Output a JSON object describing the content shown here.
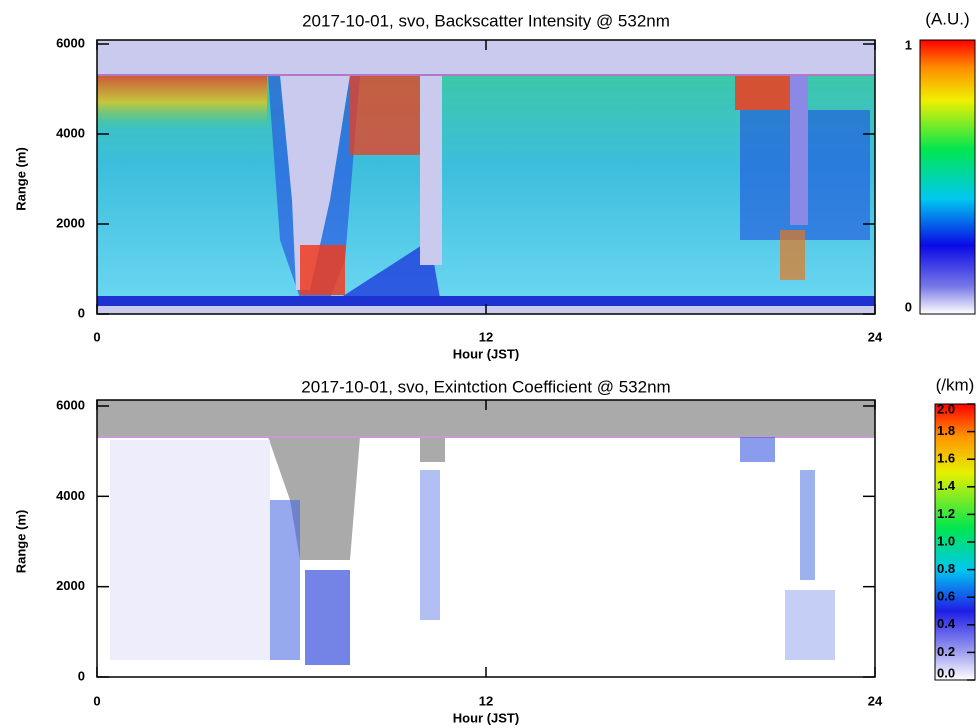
{
  "chart_data": [
    {
      "type": "heatmap",
      "title": "2017-10-01, svo, Backscatter Intensity @ 532nm",
      "x_label": "Hour (JST)",
      "y_label": "Range (m)",
      "xlim": [
        0,
        24
      ],
      "xticks": [
        0,
        12,
        24
      ],
      "ylim": [
        0,
        6000
      ],
      "yticks": [
        0,
        2000,
        4000,
        6000
      ],
      "colorbar": {
        "label": "(A.U.)",
        "lim": [
          0,
          1
        ],
        "ticks": [
          0,
          1
        ]
      }
    },
    {
      "type": "heatmap",
      "title": "2017-10-01, svo, Exintction Coefficient @ 532nm",
      "x_label": "Hour (JST)",
      "y_label": "Range (m)",
      "xlim": [
        0,
        24
      ],
      "xticks": [
        0,
        12,
        24
      ],
      "ylim": [
        0,
        6000
      ],
      "yticks": [
        0,
        2000,
        4000,
        6000
      ],
      "colorbar": {
        "label": "(/km)",
        "lim": [
          0,
          2
        ],
        "ticks": [
          {
            "value": 0,
            "label": "0.0"
          },
          0.2,
          0.4,
          0.6,
          0.8,
          {
            "value": 1,
            "label": "1.0"
          },
          1.2,
          1.4,
          1.6,
          1.8,
          {
            "value": 2,
            "label": "2.0"
          }
        ]
      }
    }
  ]
}
